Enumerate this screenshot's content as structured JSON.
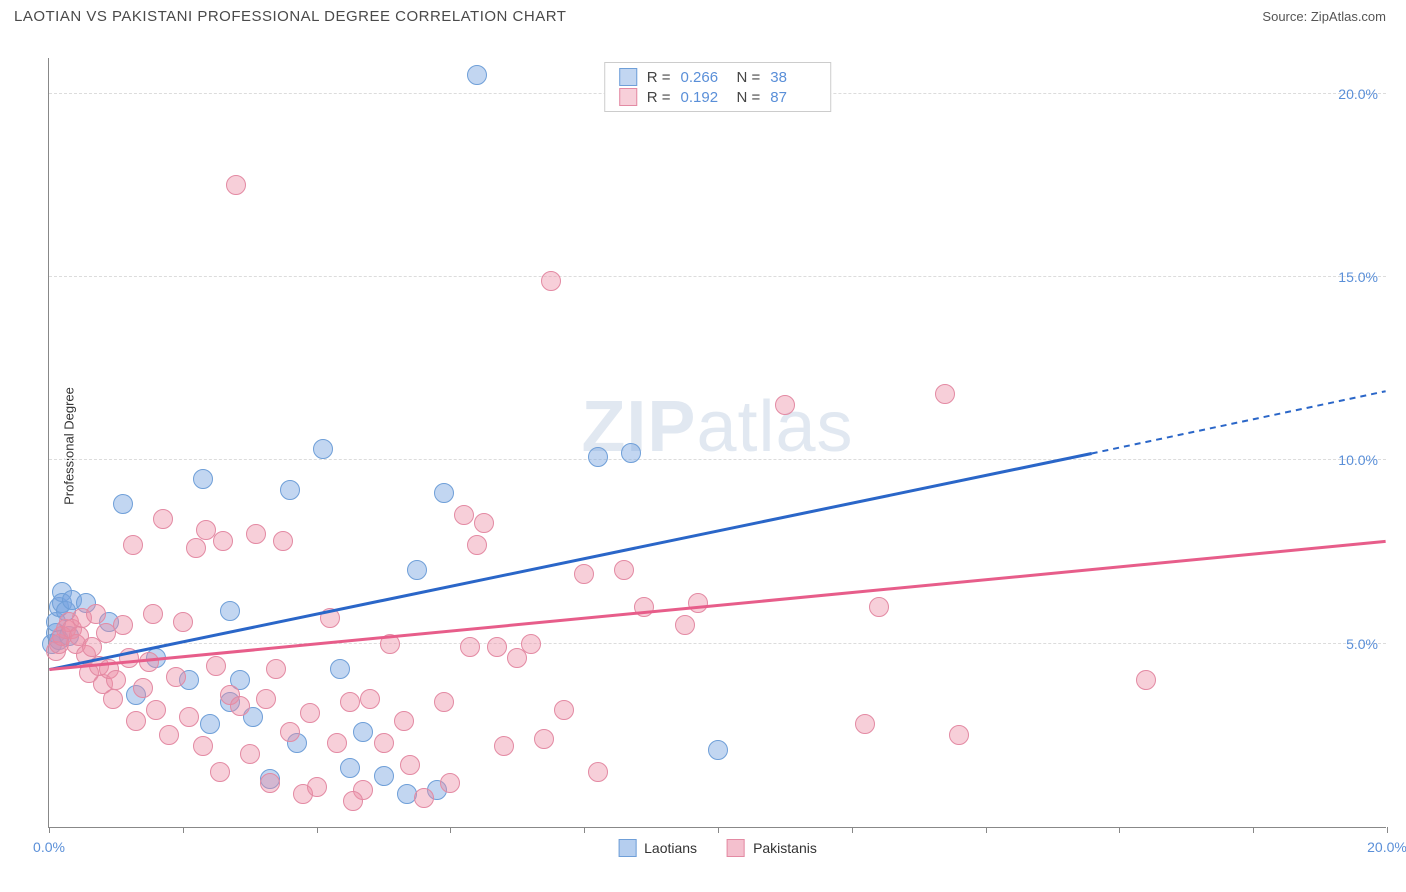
{
  "header": {
    "title": "LAOTIAN VS PAKISTANI PROFESSIONAL DEGREE CORRELATION CHART",
    "source_label": "Source:",
    "source_value": "ZipAtlas.com"
  },
  "chart": {
    "type": "scatter",
    "ylabel": "Professional Degree",
    "xlim": [
      0,
      20
    ],
    "ylim": [
      0,
      21
    ],
    "xtick_positions": [
      0,
      2,
      4,
      6,
      8,
      10,
      12,
      14,
      16,
      18,
      20
    ],
    "xtick_labels": {
      "0": "0.0%",
      "20": "20.0%"
    },
    "ytick_positions": [
      5,
      10,
      15,
      20
    ],
    "ytick_labels": {
      "5": "5.0%",
      "10": "10.0%",
      "15": "15.0%",
      "20": "20.0%"
    },
    "grid_color": "#dcdcdc",
    "background_color": "#ffffff",
    "axis_color": "#888888",
    "tick_label_color": "#5a8fd8",
    "watermark": {
      "text_bold": "ZIP",
      "text_light": "atlas"
    },
    "series": [
      {
        "name": "Laotians",
        "fill": "rgba(120,165,225,0.45)",
        "stroke": "#6f9fd8",
        "marker_radius": 10,
        "trend": {
          "x1": 0,
          "y1": 4.3,
          "x2": 15.6,
          "y2": 10.2,
          "x2_dash": 20,
          "y2_dash": 11.9,
          "color": "#2a66c8",
          "width": 3
        },
        "R": "0.266",
        "N": "38",
        "points": [
          [
            0.05,
            5.0
          ],
          [
            0.1,
            5.3
          ],
          [
            0.1,
            5.6
          ],
          [
            0.15,
            6.0
          ],
          [
            0.2,
            6.4
          ],
          [
            0.2,
            6.1
          ],
          [
            0.25,
            5.9
          ],
          [
            0.15,
            5.1
          ],
          [
            0.3,
            5.2
          ],
          [
            0.35,
            6.2
          ],
          [
            0.55,
            6.1
          ],
          [
            0.9,
            5.6
          ],
          [
            1.1,
            8.8
          ],
          [
            1.3,
            3.6
          ],
          [
            1.6,
            4.6
          ],
          [
            2.1,
            4.0
          ],
          [
            2.4,
            2.8
          ],
          [
            2.7,
            3.4
          ],
          [
            2.7,
            5.9
          ],
          [
            2.85,
            4.0
          ],
          [
            3.05,
            3.0
          ],
          [
            3.3,
            1.3
          ],
          [
            3.6,
            9.2
          ],
          [
            3.7,
            2.3
          ],
          [
            4.1,
            10.3
          ],
          [
            4.35,
            4.3
          ],
          [
            4.5,
            1.6
          ],
          [
            4.7,
            2.6
          ],
          [
            5.0,
            1.4
          ],
          [
            5.35,
            0.9
          ],
          [
            5.5,
            7.0
          ],
          [
            5.8,
            1.0
          ],
          [
            5.9,
            9.1
          ],
          [
            6.4,
            20.5
          ],
          [
            8.2,
            10.1
          ],
          [
            8.7,
            10.2
          ],
          [
            10.0,
            2.1
          ],
          [
            2.3,
            9.5
          ]
        ]
      },
      {
        "name": "Pakistanis",
        "fill": "rgba(235,140,165,0.42)",
        "stroke": "#e38aa3",
        "marker_radius": 10,
        "trend": {
          "x1": 0,
          "y1": 4.3,
          "x2": 20,
          "y2": 7.8,
          "color": "#e75d8a",
          "width": 3
        },
        "R": "0.192",
        "N": "87",
        "points": [
          [
            0.1,
            4.8
          ],
          [
            0.15,
            5.0
          ],
          [
            0.2,
            5.2
          ],
          [
            0.25,
            5.4
          ],
          [
            0.3,
            5.6
          ],
          [
            0.35,
            5.4
          ],
          [
            0.4,
            5.0
          ],
          [
            0.45,
            5.2
          ],
          [
            0.5,
            5.7
          ],
          [
            0.55,
            4.7
          ],
          [
            0.6,
            4.2
          ],
          [
            0.65,
            4.9
          ],
          [
            0.7,
            5.8
          ],
          [
            0.75,
            4.4
          ],
          [
            0.8,
            3.9
          ],
          [
            0.85,
            5.3
          ],
          [
            0.9,
            4.3
          ],
          [
            0.95,
            3.5
          ],
          [
            1.0,
            4.0
          ],
          [
            1.1,
            5.5
          ],
          [
            1.2,
            4.6
          ],
          [
            1.25,
            7.7
          ],
          [
            1.3,
            2.9
          ],
          [
            1.4,
            3.8
          ],
          [
            1.5,
            4.5
          ],
          [
            1.55,
            5.8
          ],
          [
            1.6,
            3.2
          ],
          [
            1.7,
            8.4
          ],
          [
            1.8,
            2.5
          ],
          [
            1.9,
            4.1
          ],
          [
            2.0,
            5.6
          ],
          [
            2.1,
            3.0
          ],
          [
            2.2,
            7.6
          ],
          [
            2.3,
            2.2
          ],
          [
            2.35,
            8.1
          ],
          [
            2.5,
            4.4
          ],
          [
            2.55,
            1.5
          ],
          [
            2.6,
            7.8
          ],
          [
            2.7,
            3.6
          ],
          [
            2.8,
            17.5
          ],
          [
            2.85,
            3.3
          ],
          [
            3.0,
            2.0
          ],
          [
            3.1,
            8.0
          ],
          [
            3.25,
            3.5
          ],
          [
            3.3,
            1.2
          ],
          [
            3.4,
            4.3
          ],
          [
            3.5,
            7.8
          ],
          [
            3.6,
            2.6
          ],
          [
            3.8,
            0.9
          ],
          [
            3.9,
            3.1
          ],
          [
            4.0,
            1.1
          ],
          [
            4.2,
            5.7
          ],
          [
            4.3,
            2.3
          ],
          [
            4.5,
            3.4
          ],
          [
            4.7,
            1.0
          ],
          [
            4.8,
            3.5
          ],
          [
            5.0,
            2.3
          ],
          [
            5.1,
            5.0
          ],
          [
            5.4,
            1.7
          ],
          [
            5.6,
            0.8
          ],
          [
            5.9,
            3.4
          ],
          [
            6.0,
            1.2
          ],
          [
            6.2,
            8.5
          ],
          [
            6.3,
            4.9
          ],
          [
            6.4,
            7.7
          ],
          [
            6.5,
            8.3
          ],
          [
            6.7,
            4.9
          ],
          [
            7.0,
            4.6
          ],
          [
            7.2,
            5.0
          ],
          [
            7.4,
            2.4
          ],
          [
            7.5,
            14.9
          ],
          [
            7.7,
            3.2
          ],
          [
            8.0,
            6.9
          ],
          [
            8.2,
            1.5
          ],
          [
            8.6,
            7.0
          ],
          [
            8.9,
            6.0
          ],
          [
            9.5,
            5.5
          ],
          [
            9.7,
            6.1
          ],
          [
            11.0,
            11.5
          ],
          [
            12.2,
            2.8
          ],
          [
            12.4,
            6.0
          ],
          [
            13.4,
            11.8
          ],
          [
            13.6,
            2.5
          ],
          [
            16.4,
            4.0
          ],
          [
            5.3,
            2.9
          ],
          [
            6.8,
            2.2
          ],
          [
            4.55,
            0.7
          ]
        ]
      }
    ],
    "legend_bottom": [
      {
        "label": "Laotians",
        "fill": "rgba(120,165,225,0.55)",
        "stroke": "#6f9fd8"
      },
      {
        "label": "Pakistanis",
        "fill": "rgba(235,140,165,0.55)",
        "stroke": "#e38aa3"
      }
    ]
  }
}
